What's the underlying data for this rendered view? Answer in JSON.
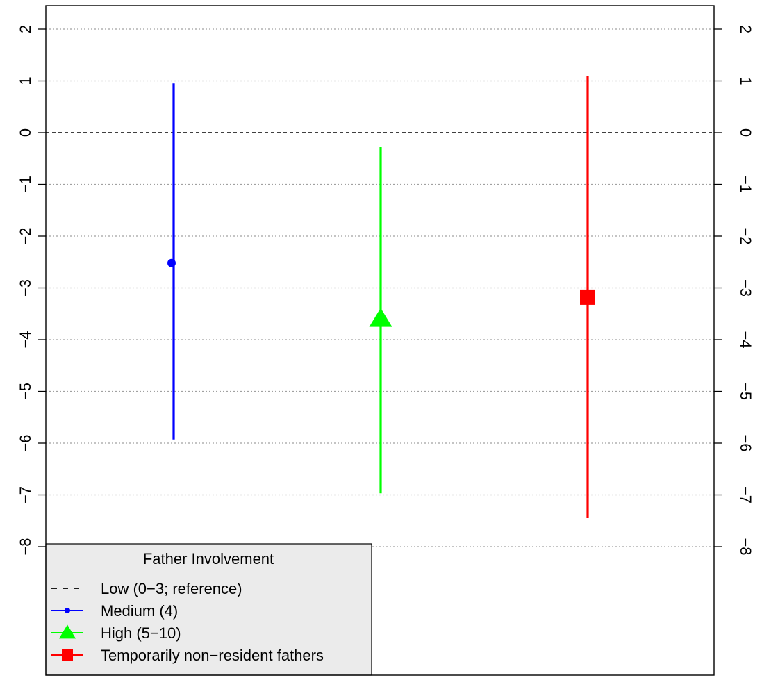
{
  "chart_data": {
    "type": "point-range",
    "title": "",
    "xlabel": "",
    "ylabel": "",
    "ylim": [
      -8.6,
      2.5
    ],
    "y_ticks": [
      2,
      1,
      0,
      -1,
      -2,
      -3,
      -4,
      -5,
      -6,
      -7,
      -8
    ],
    "y_tick_labels": [
      "2",
      "1",
      "0",
      "−1",
      "−2",
      "−3",
      "−4",
      "−5",
      "−6",
      "−7",
      "−8"
    ],
    "grid": "horizontal dotted at each tick",
    "reference_line": {
      "y": 0,
      "style": "dashed",
      "color": "#000000"
    },
    "series": [
      {
        "name": "Medium (4)",
        "x": 1,
        "estimate": -2.52,
        "lower": -5.93,
        "upper": 0.95,
        "color": "#0000ff",
        "marker": "circle"
      },
      {
        "name": "High (5−10)",
        "x": 2,
        "estimate": -3.6,
        "lower": -6.97,
        "upper": -0.28,
        "color": "#00ff00",
        "marker": "triangle"
      },
      {
        "name": "Temporarily non−resident fathers",
        "x": 3,
        "estimate": -3.18,
        "lower": -7.45,
        "upper": 1.1,
        "color": "#ff0000",
        "marker": "square"
      }
    ],
    "legend": {
      "title": "Father Involvement",
      "position": "bottom-left",
      "background": "#ebebeb",
      "entries": [
        {
          "label": "Low (0−3; reference)",
          "color": "#000000",
          "line": "dashed",
          "marker": "none"
        },
        {
          "label": "Medium (4)",
          "color": "#0000ff",
          "line": "solid",
          "marker": "circle"
        },
        {
          "label": "High (5−10)",
          "color": "#00ff00",
          "line": "solid",
          "marker": "triangle"
        },
        {
          "label": "Temporarily non−resident fathers",
          "color": "#ff0000",
          "line": "solid",
          "marker": "square"
        }
      ]
    }
  }
}
